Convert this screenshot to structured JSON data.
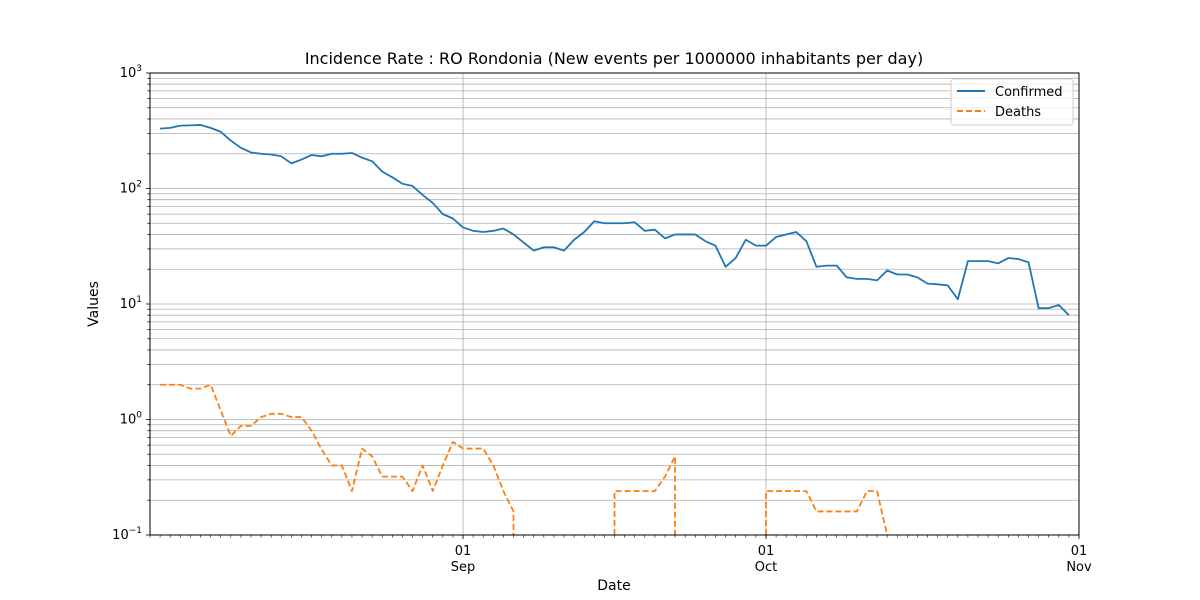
{
  "chart_data": {
    "type": "line",
    "title": "Incidence Rate : RO Rondonia (New events per 1000000 inhabitants per day)",
    "xlabel": "Date",
    "ylabel": "Values",
    "yscale": "log",
    "ylim": [
      0.1,
      1000
    ],
    "xlim": [
      "2020-08-01",
      "2020-11-01"
    ],
    "grid": true,
    "legend_position": "top-right",
    "x_ticks": [
      {
        "date": "2020-09-01",
        "day": "01",
        "month": "Sep"
      },
      {
        "date": "2020-10-01",
        "day": "01",
        "month": "Oct"
      },
      {
        "date": "2020-11-01",
        "day": "01",
        "month": "Nov"
      }
    ],
    "y_ticks": [
      {
        "value": 0.1,
        "base": "10",
        "exp": "−1"
      },
      {
        "value": 1,
        "base": "10",
        "exp": "0"
      },
      {
        "value": 10,
        "base": "10",
        "exp": "1"
      },
      {
        "value": 100,
        "base": "10",
        "exp": "2"
      },
      {
        "value": 1000,
        "base": "10",
        "exp": "3"
      }
    ],
    "series": [
      {
        "name": "Confirmed",
        "color": "#1f77b4",
        "style": "solid",
        "points": [
          [
            "2020-08-02",
            330
          ],
          [
            "2020-08-03",
            335
          ],
          [
            "2020-08-04",
            350
          ],
          [
            "2020-08-05",
            352
          ],
          [
            "2020-08-06",
            355
          ],
          [
            "2020-08-07",
            335
          ],
          [
            "2020-08-08",
            310
          ],
          [
            "2020-08-09",
            260
          ],
          [
            "2020-08-10",
            225
          ],
          [
            "2020-08-11",
            205
          ],
          [
            "2020-08-12",
            200
          ],
          [
            "2020-08-13",
            197
          ],
          [
            "2020-08-14",
            190
          ],
          [
            "2020-08-15",
            165
          ],
          [
            "2020-08-16",
            178
          ],
          [
            "2020-08-17",
            195
          ],
          [
            "2020-08-18",
            190
          ],
          [
            "2020-08-19",
            200
          ],
          [
            "2020-08-20",
            200
          ],
          [
            "2020-08-21",
            203
          ],
          [
            "2020-08-22",
            185
          ],
          [
            "2020-08-23",
            172
          ],
          [
            "2020-08-24",
            140
          ],
          [
            "2020-08-25",
            125
          ],
          [
            "2020-08-26",
            110
          ],
          [
            "2020-08-27",
            105
          ],
          [
            "2020-08-28",
            88
          ],
          [
            "2020-08-29",
            75
          ],
          [
            "2020-08-30",
            60
          ],
          [
            "2020-08-31",
            55
          ],
          [
            "2020-09-01",
            46
          ],
          [
            "2020-09-02",
            43
          ],
          [
            "2020-09-03",
            42
          ],
          [
            "2020-09-04",
            43
          ],
          [
            "2020-09-05",
            45
          ],
          [
            "2020-09-06",
            40
          ],
          [
            "2020-09-07",
            34
          ],
          [
            "2020-09-08",
            29
          ],
          [
            "2020-09-09",
            31
          ],
          [
            "2020-09-10",
            31
          ],
          [
            "2020-09-11",
            29
          ],
          [
            "2020-09-12",
            36
          ],
          [
            "2020-09-13",
            42
          ],
          [
            "2020-09-14",
            52
          ],
          [
            "2020-09-15",
            50
          ],
          [
            "2020-09-16",
            50
          ],
          [
            "2020-09-17",
            50
          ],
          [
            "2020-09-18",
            51
          ],
          [
            "2020-09-19",
            43
          ],
          [
            "2020-09-20",
            44
          ],
          [
            "2020-09-21",
            37
          ],
          [
            "2020-09-22",
            40
          ],
          [
            "2020-09-23",
            40
          ],
          [
            "2020-09-24",
            40
          ],
          [
            "2020-09-25",
            35
          ],
          [
            "2020-09-26",
            32
          ],
          [
            "2020-09-27",
            21
          ],
          [
            "2020-09-28",
            25
          ],
          [
            "2020-09-29",
            36
          ],
          [
            "2020-09-30",
            32
          ],
          [
            "2020-10-01",
            32
          ],
          [
            "2020-10-02",
            38
          ],
          [
            "2020-10-03",
            40
          ],
          [
            "2020-10-04",
            42
          ],
          [
            "2020-10-05",
            35
          ],
          [
            "2020-10-06",
            21
          ],
          [
            "2020-10-07",
            21.5
          ],
          [
            "2020-10-08",
            21.5
          ],
          [
            "2020-10-09",
            17
          ],
          [
            "2020-10-10",
            16.5
          ],
          [
            "2020-10-11",
            16.5
          ],
          [
            "2020-10-12",
            16
          ],
          [
            "2020-10-13",
            19.5
          ],
          [
            "2020-10-14",
            18
          ],
          [
            "2020-10-15",
            18
          ],
          [
            "2020-10-16",
            17
          ],
          [
            "2020-10-17",
            15
          ],
          [
            "2020-10-18",
            14.8
          ],
          [
            "2020-10-19",
            14.5
          ],
          [
            "2020-10-20",
            11
          ],
          [
            "2020-10-21",
            23.5
          ],
          [
            "2020-10-22",
            23.5
          ],
          [
            "2020-10-23",
            23.5
          ],
          [
            "2020-10-24",
            22.5
          ],
          [
            "2020-10-25",
            25
          ],
          [
            "2020-10-26",
            24.5
          ],
          [
            "2020-10-27",
            23
          ],
          [
            "2020-10-28",
            9.2
          ],
          [
            "2020-10-29",
            9.2
          ],
          [
            "2020-10-30",
            9.8
          ],
          [
            "2020-10-31",
            8
          ]
        ]
      },
      {
        "name": "Deaths",
        "color": "#ff7f0e",
        "style": "dashed",
        "segments": [
          [
            [
              "2020-08-02",
              2.0
            ],
            [
              "2020-08-03",
              2.0
            ],
            [
              "2020-08-04",
              2.0
            ],
            [
              "2020-08-05",
              1.85
            ],
            [
              "2020-08-06",
              1.85
            ],
            [
              "2020-08-07",
              2.0
            ],
            [
              "2020-08-08",
              1.2
            ],
            [
              "2020-08-09",
              0.72
            ],
            [
              "2020-08-10",
              0.88
            ],
            [
              "2020-08-11",
              0.88
            ],
            [
              "2020-08-12",
              1.05
            ],
            [
              "2020-08-13",
              1.12
            ],
            [
              "2020-08-14",
              1.12
            ],
            [
              "2020-08-15",
              1.05
            ],
            [
              "2020-08-16",
              1.05
            ],
            [
              "2020-08-17",
              0.8
            ],
            [
              "2020-08-18",
              0.55
            ],
            [
              "2020-08-19",
              0.4
            ],
            [
              "2020-08-20",
              0.4
            ],
            [
              "2020-08-21",
              0.24
            ],
            [
              "2020-08-22",
              0.56
            ],
            [
              "2020-08-23",
              0.48
            ],
            [
              "2020-08-24",
              0.32
            ],
            [
              "2020-08-25",
              0.32
            ],
            [
              "2020-08-26",
              0.32
            ],
            [
              "2020-08-27",
              0.24
            ],
            [
              "2020-08-28",
              0.4
            ],
            [
              "2020-08-29",
              0.24
            ],
            [
              "2020-08-30",
              0.4
            ],
            [
              "2020-08-31",
              0.64
            ],
            [
              "2020-09-01",
              0.56
            ],
            [
              "2020-09-02",
              0.56
            ],
            [
              "2020-09-03",
              0.56
            ],
            [
              "2020-09-04",
              0.4
            ],
            [
              "2020-09-05",
              0.24
            ],
            [
              "2020-09-06",
              0.16
            ],
            [
              "2020-09-06",
              0.1
            ]
          ],
          [
            [
              "2020-09-16",
              0.1
            ],
            [
              "2020-09-16",
              0.24
            ],
            [
              "2020-09-17",
              0.24
            ],
            [
              "2020-09-18",
              0.24
            ],
            [
              "2020-09-19",
              0.24
            ],
            [
              "2020-09-20",
              0.24
            ],
            [
              "2020-09-21",
              0.32
            ],
            [
              "2020-09-22",
              0.48
            ],
            [
              "2020-09-22",
              0.1
            ]
          ],
          [
            [
              "2020-10-01",
              0.1
            ],
            [
              "2020-10-01",
              0.24
            ],
            [
              "2020-10-02",
              0.24
            ],
            [
              "2020-10-03",
              0.24
            ],
            [
              "2020-10-04",
              0.24
            ],
            [
              "2020-10-05",
              0.24
            ],
            [
              "2020-10-06",
              0.16
            ],
            [
              "2020-10-07",
              0.16
            ],
            [
              "2020-10-08",
              0.16
            ],
            [
              "2020-10-09",
              0.16
            ],
            [
              "2020-10-10",
              0.16
            ],
            [
              "2020-10-11",
              0.24
            ],
            [
              "2020-10-12",
              0.24
            ],
            [
              "2020-10-13",
              0.1
            ]
          ]
        ]
      }
    ]
  }
}
